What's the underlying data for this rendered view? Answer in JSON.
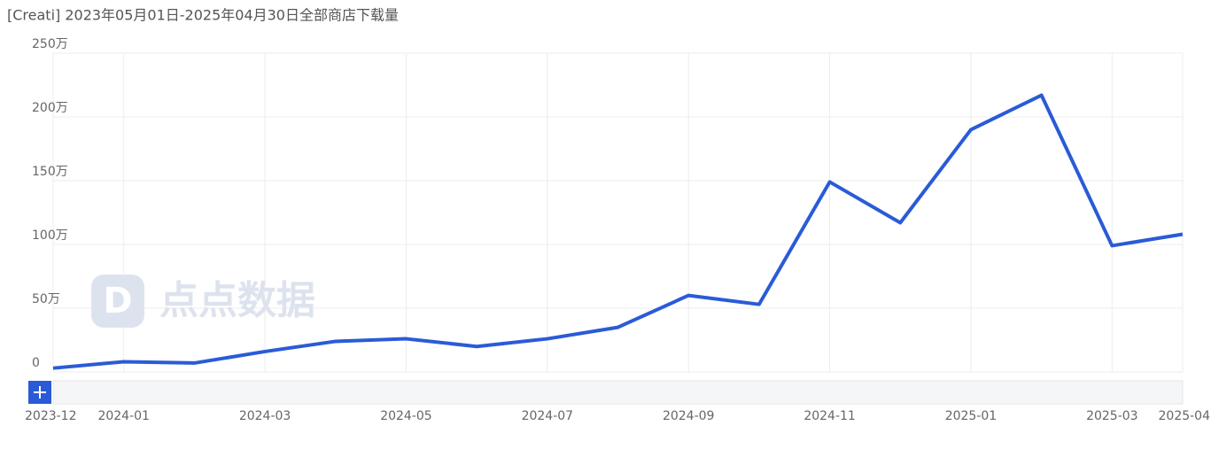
{
  "chart_data": {
    "type": "line",
    "title": "[Creati] 2023年05月01日-2025年04月30日全部商店下载量",
    "watermark": "点点数据",
    "x": [
      "2023-12",
      "2024-01",
      null,
      "2024-03",
      null,
      "2024-05",
      null,
      "2024-07",
      null,
      "2024-09",
      null,
      "2024-11",
      null,
      "2025-01",
      null,
      "2025-03",
      "2025-04"
    ],
    "values": [
      3,
      8,
      7,
      16,
      24,
      26,
      20,
      26,
      35,
      60,
      53,
      149,
      117,
      190,
      217,
      99,
      108
    ],
    "color": "#2a5bd7",
    "ylim": [
      0,
      250
    ],
    "yticks": [
      0,
      {
        "value": 50,
        "label": "50万"
      },
      {
        "value": 100,
        "label": "100万"
      },
      {
        "value": 150,
        "label": "150万"
      },
      {
        "value": 200,
        "label": "200万"
      },
      {
        "value": 250,
        "label": "250万"
      }
    ],
    "grid": true
  }
}
